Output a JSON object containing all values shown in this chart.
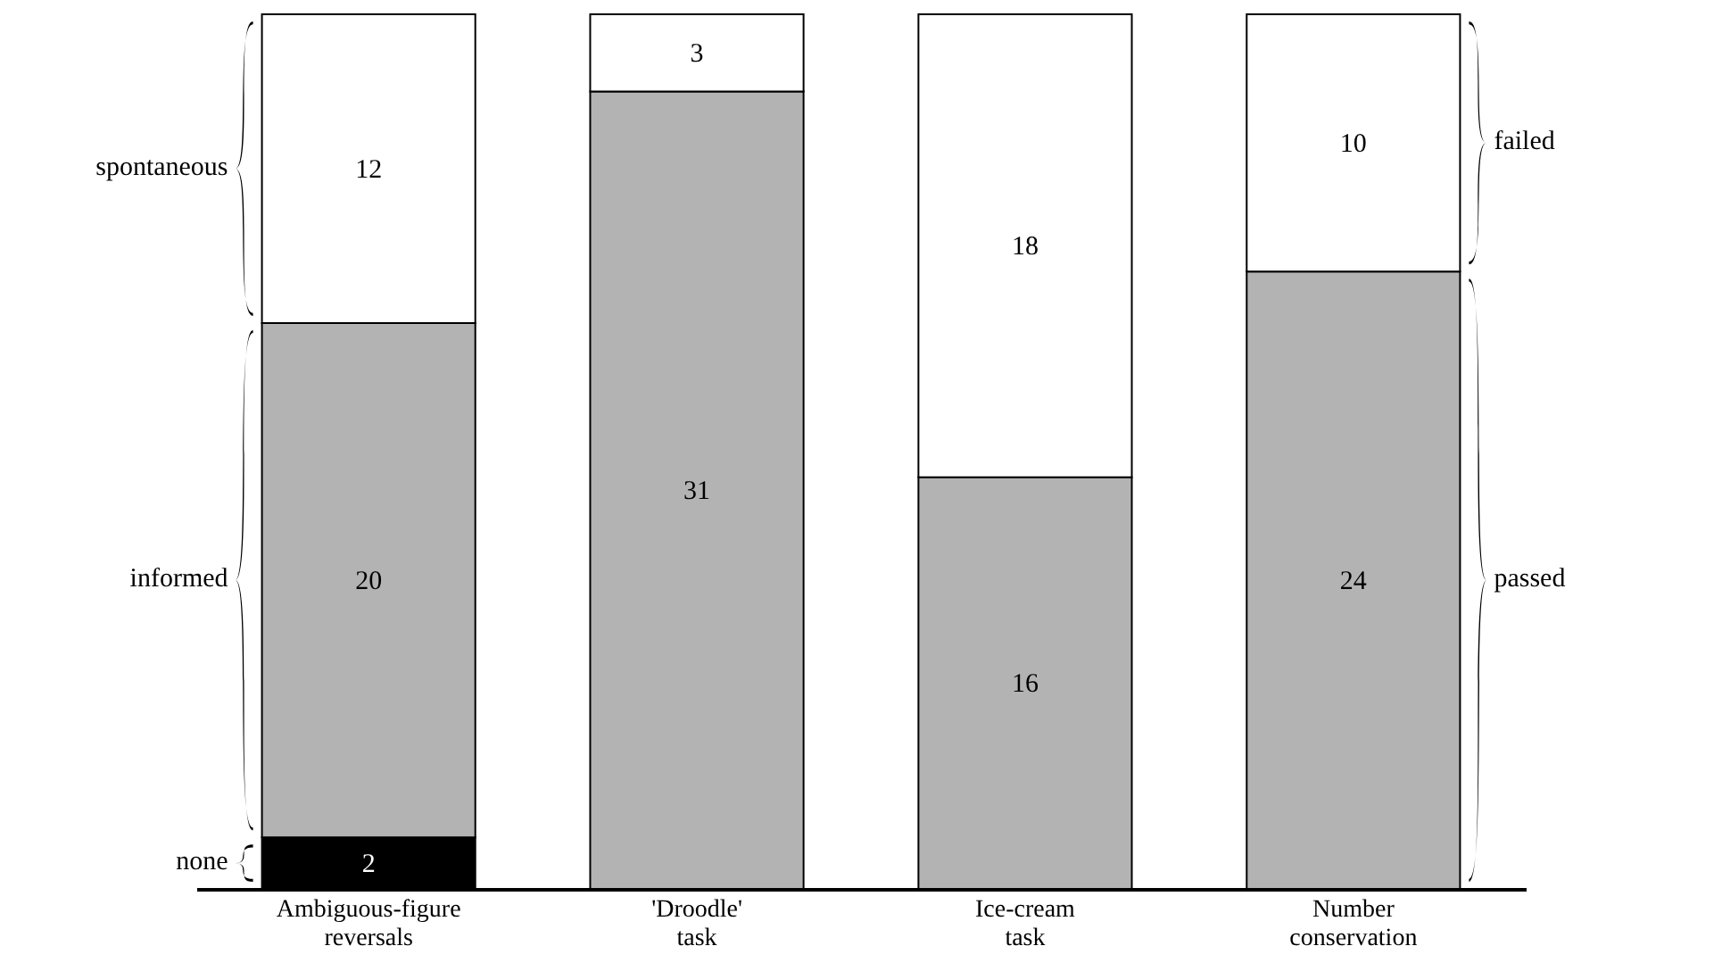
{
  "chart_data": {
    "type": "bar",
    "stacked": true,
    "data_labels": true,
    "categories": [
      "Ambiguous-figure reversals",
      "'Droodle' task",
      "Ice-cream task",
      "Number conservation"
    ],
    "series": [
      {
        "name": "none",
        "color": "#000000",
        "values": [
          2,
          null,
          null,
          null
        ]
      },
      {
        "name": "informed",
        "color": "#b3b3b3",
        "values": [
          20,
          null,
          null,
          null
        ]
      },
      {
        "name": "spontaneous",
        "color": "#ffffff",
        "values": [
          12,
          null,
          null,
          null
        ]
      },
      {
        "name": "passed",
        "color": "#b3b3b3",
        "values": [
          null,
          31,
          16,
          24
        ]
      },
      {
        "name": "failed",
        "color": "#ffffff",
        "values": [
          null,
          3,
          18,
          10
        ]
      }
    ]
  }
}
